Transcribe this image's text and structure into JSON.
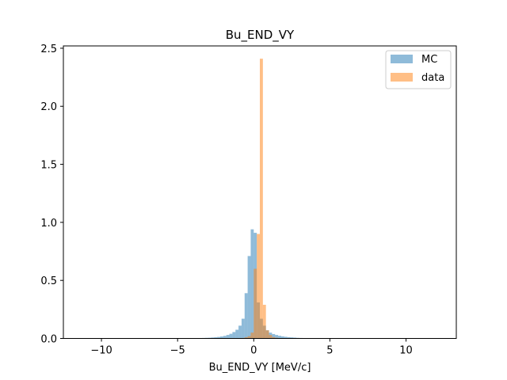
{
  "chart_data": {
    "type": "histogram",
    "title": "Bu_END_VY",
    "xlabel": "Bu_END_VY [MeV/c]",
    "ylabel": "",
    "xlim": [
      -12.5,
      13.3
    ],
    "ylim": [
      0,
      2.52
    ],
    "x_ticks": [
      -10,
      -5,
      0,
      5,
      10
    ],
    "y_ticks": [
      0.0,
      0.5,
      1.0,
      1.5,
      2.0,
      2.5
    ],
    "x_tick_labels": [
      "−10",
      "−5",
      "0",
      "5",
      "10"
    ],
    "y_tick_labels": [
      "0.0",
      "0.5",
      "1.0",
      "1.5",
      "2.0",
      "2.5"
    ],
    "legend_position": "upper-right",
    "grid": false,
    "bin_width": 0.2,
    "series": [
      {
        "name": "MC",
        "color": "#1f77b4",
        "alpha": 0.5,
        "bins": [
          {
            "x0": -3.6,
            "h": 0.003
          },
          {
            "x0": -3.4,
            "h": 0.004
          },
          {
            "x0": -3.2,
            "h": 0.005
          },
          {
            "x0": -3.0,
            "h": 0.006
          },
          {
            "x0": -2.8,
            "h": 0.008
          },
          {
            "x0": -2.6,
            "h": 0.01
          },
          {
            "x0": -2.4,
            "h": 0.013
          },
          {
            "x0": -2.2,
            "h": 0.017
          },
          {
            "x0": -2.0,
            "h": 0.022
          },
          {
            "x0": -1.8,
            "h": 0.03
          },
          {
            "x0": -1.6,
            "h": 0.04
          },
          {
            "x0": -1.4,
            "h": 0.055
          },
          {
            "x0": -1.2,
            "h": 0.075
          },
          {
            "x0": -1.0,
            "h": 0.11
          },
          {
            "x0": -0.8,
            "h": 0.17
          },
          {
            "x0": -0.6,
            "h": 0.39
          },
          {
            "x0": -0.4,
            "h": 0.71
          },
          {
            "x0": -0.2,
            "h": 0.94
          },
          {
            "x0": 0.0,
            "h": 0.91
          },
          {
            "x0": 0.2,
            "h": 0.31
          },
          {
            "x0": 0.4,
            "h": 0.17
          },
          {
            "x0": 0.6,
            "h": 0.11
          },
          {
            "x0": 0.8,
            "h": 0.07
          },
          {
            "x0": 1.0,
            "h": 0.05
          },
          {
            "x0": 1.2,
            "h": 0.038
          },
          {
            "x0": 1.4,
            "h": 0.03
          },
          {
            "x0": 1.6,
            "h": 0.023
          },
          {
            "x0": 1.8,
            "h": 0.018
          },
          {
            "x0": 2.0,
            "h": 0.014
          },
          {
            "x0": 2.2,
            "h": 0.011
          },
          {
            "x0": 2.4,
            "h": 0.009
          },
          {
            "x0": 2.6,
            "h": 0.007
          },
          {
            "x0": 2.8,
            "h": 0.005
          },
          {
            "x0": 3.0,
            "h": 0.004
          },
          {
            "x0": 3.2,
            "h": 0.003
          }
        ]
      },
      {
        "name": "data",
        "color": "#ff7f0e",
        "alpha": 0.5,
        "bins": [
          {
            "x0": -0.8,
            "h": 0.004
          },
          {
            "x0": -0.6,
            "h": 0.01
          },
          {
            "x0": -0.4,
            "h": 0.02
          },
          {
            "x0": -0.2,
            "h": 0.05
          },
          {
            "x0": 0.0,
            "h": 0.6
          },
          {
            "x0": 0.2,
            "h": 0.9
          },
          {
            "x0": 0.4,
            "h": 2.41
          },
          {
            "x0": 0.6,
            "h": 0.29
          },
          {
            "x0": 0.8,
            "h": 0.07
          },
          {
            "x0": 1.0,
            "h": 0.03
          },
          {
            "x0": 1.2,
            "h": 0.012
          },
          {
            "x0": 1.4,
            "h": 0.006
          }
        ]
      }
    ]
  }
}
